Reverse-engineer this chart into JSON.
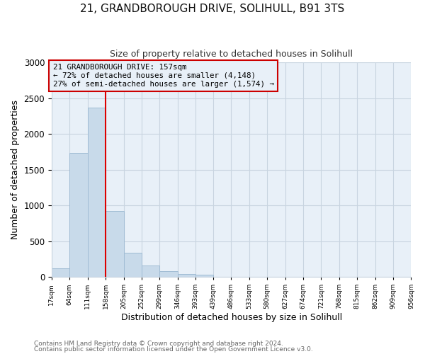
{
  "title": "21, GRANDBOROUGH DRIVE, SOLIHULL, B91 3TS",
  "subtitle": "Size of property relative to detached houses in Solihull",
  "xlabel": "Distribution of detached houses by size in Solihull",
  "ylabel": "Number of detached properties",
  "bar_color": "#c8daea",
  "bar_edgecolor": "#a0bcd4",
  "bar_linewidth": 0.7,
  "grid_color": "#c8d4e0",
  "plot_bg_color": "#e8f0f8",
  "fig_bg_color": "#ffffff",
  "vline_x": 158,
  "vline_color": "#dd0000",
  "annotation_text": "21 GRANDBOROUGH DRIVE: 157sqm\n← 72% of detached houses are smaller (4,148)\n27% of semi-detached houses are larger (1,574) →",
  "annotation_box_edgecolor": "#cc0000",
  "bins": [
    17,
    64,
    111,
    158,
    205,
    252,
    299,
    346,
    393,
    439,
    486,
    533,
    580,
    627,
    674,
    721,
    768,
    815,
    862,
    909,
    956
  ],
  "counts": [
    120,
    1730,
    2370,
    920,
    340,
    155,
    80,
    45,
    35,
    0,
    0,
    0,
    0,
    0,
    0,
    0,
    0,
    0,
    0,
    0
  ],
  "ylim": [
    0,
    3000
  ],
  "yticks": [
    0,
    500,
    1000,
    1500,
    2000,
    2500,
    3000
  ],
  "footnote1": "Contains HM Land Registry data © Crown copyright and database right 2024.",
  "footnote2": "Contains public sector information licensed under the Open Government Licence v3.0."
}
